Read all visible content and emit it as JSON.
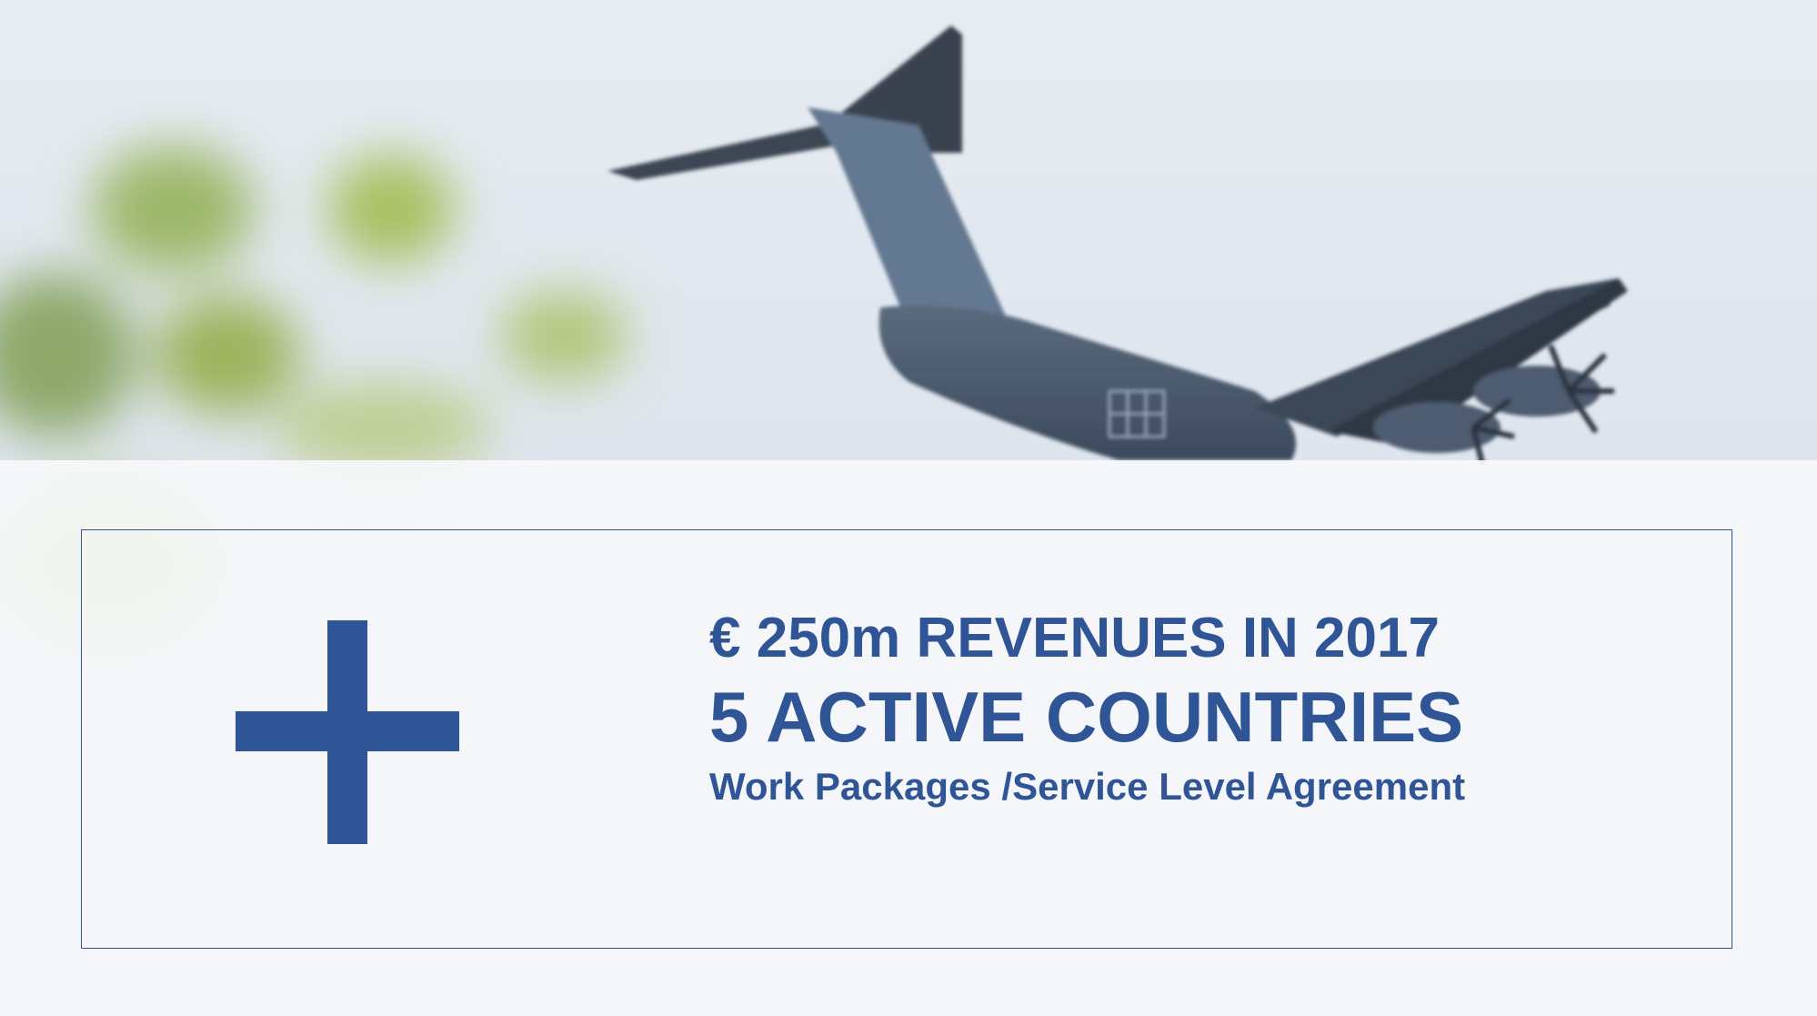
{
  "background": {
    "photo_description_icon": "a400m-aircraft-photo-icon",
    "accent_color": "#2f5597"
  },
  "panel": {
    "plus_icon": "plus-icon",
    "headline": "€ 250m REVENUES IN 2017",
    "subheadline": "5 ACTIVE COUNTRIES",
    "detail": "Work Packages /Service Level Agreement"
  }
}
